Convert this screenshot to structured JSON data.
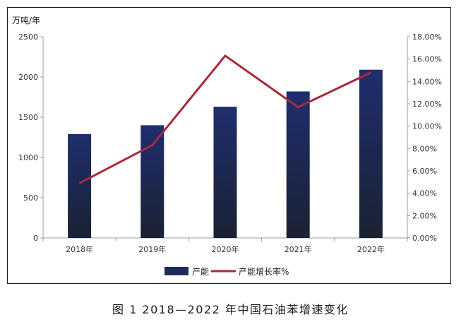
{
  "caption": "图 1  2018—2022 年中国石油苯增速变化",
  "chart_data": {
    "type": "bar",
    "categories": [
      "2018年",
      "2019年",
      "2020年",
      "2021年",
      "2022年"
    ],
    "series": [
      {
        "name": "产能",
        "type": "bar",
        "axis": "left",
        "color": "#1f2a5c",
        "values": [
          1290,
          1400,
          1630,
          1820,
          2090
        ]
      },
      {
        "name": "产能增长率%",
        "type": "line",
        "axis": "right",
        "color": "#a8293a",
        "values": [
          4.9,
          8.3,
          16.3,
          11.7,
          14.8
        ]
      }
    ],
    "y_left": {
      "label": "万吨/年",
      "min": 0,
      "max": 2500,
      "ticks": [
        "0",
        "500",
        "1000",
        "1500",
        "2000",
        "2500"
      ]
    },
    "y_right": {
      "min": 0,
      "max": 18,
      "ticks": [
        "0.00%",
        "2.00%",
        "4.00%",
        "6.00%",
        "8.00%",
        "10.00%",
        "12.00%",
        "14.00%",
        "16.00%",
        "18.00%"
      ]
    },
    "legend_position": "bottom",
    "grid": false
  }
}
